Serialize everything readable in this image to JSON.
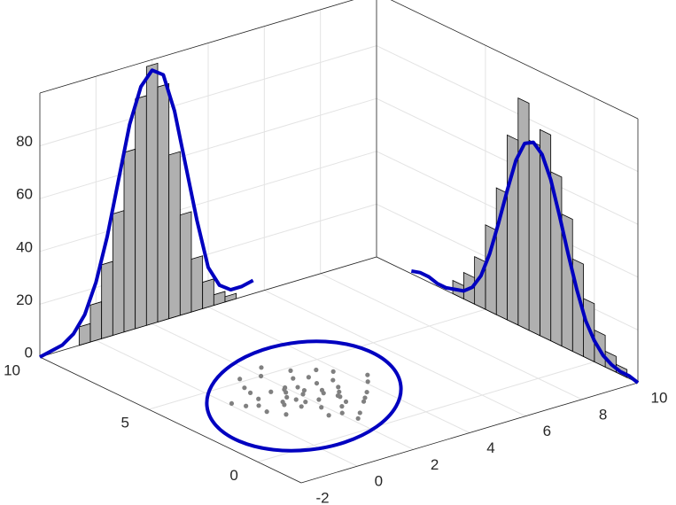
{
  "chart_data": {
    "type": "scatter3d",
    "xlim": [
      -2,
      10
    ],
    "ylim": [
      -2,
      10
    ],
    "zlim": [
      0,
      100
    ],
    "xticks": [
      -2,
      0,
      2,
      4,
      6,
      8,
      10
    ],
    "yticks": [
      0,
      5,
      10
    ],
    "zticks": [
      0,
      20,
      40,
      60,
      80
    ],
    "grid": true,
    "scatter": {
      "color": "#808080",
      "x": [
        2.1,
        1.5,
        2.8,
        0.9,
        3.2,
        2.4,
        1.8,
        2.6,
        1.2,
        3.6,
        2.0,
        0.5,
        2.9,
        1.7,
        3.0,
        2.3,
        1.1,
        2.7,
        1.9,
        3.4,
        0.8,
        2.2,
        1.6,
        2.5,
        4.1,
        1.4,
        3.1,
        2.0,
        0.3,
        2.6,
        1.9,
        3.8,
        1.3,
        2.4,
        2.8,
        1.0,
        2.1,
        3.3,
        1.7,
        2.9,
        4.4,
        0.6,
        2.3,
        1.5,
        3.5,
        2.2,
        1.8,
        2.7,
        0.1,
        3.0
      ],
      "y": [
        3.2,
        3.9,
        2.5,
        3.7,
        3.0,
        1.8,
        2.7,
        4.3,
        2.9,
        2.2,
        5.0,
        2.8,
        3.6,
        1.5,
        4.1,
        3.4,
        4.6,
        2.0,
        3.8,
        3.5,
        2.3,
        2.6,
        3.3,
        1.1,
        2.8,
        5.2,
        1.7,
        3.9,
        3.5,
        2.9,
        2.1,
        4.0,
        3.1,
        5.5,
        2.4,
        4.2,
        1.4,
        1.9,
        3.0,
        4.8,
        3.2,
        3.3,
        3.7,
        2.5,
        4.4,
        0.8,
        3.6,
        3.1,
        3.9,
        2.7
      ]
    },
    "x_histogram": {
      "color": "#b0b0b0",
      "bins": [
        -0.6,
        -0.2,
        0.2,
        0.6,
        1.0,
        1.4,
        1.8,
        2.2,
        2.6,
        3.0,
        3.4,
        3.8,
        4.2,
        4.6,
        5.0
      ],
      "counts": [
        7,
        14,
        28,
        46,
        68,
        87,
        98,
        89,
        62,
        38,
        20,
        10,
        4,
        2
      ]
    },
    "y_histogram": {
      "color": "#b0b0b0",
      "bins": [
        -1.5,
        -1.0,
        -0.5,
        0,
        0.5,
        1.0,
        1.5,
        2.0,
        2.5,
        3.0,
        3.5,
        4.0,
        4.5,
        5.0,
        5.5,
        6.0,
        6.5
      ],
      "counts": [
        3,
        6,
        12,
        22,
        35,
        50,
        64,
        78,
        72,
        86,
        70,
        48,
        32,
        18,
        10,
        5
      ]
    },
    "x_fit": {
      "color": "#0000c0",
      "x": [
        -2,
        -1.6,
        -1.2,
        -0.8,
        -0.4,
        0,
        0.4,
        0.8,
        1.2,
        1.6,
        2.0,
        2.4,
        2.8,
        3.2,
        3.6,
        4.0,
        4.4,
        4.8,
        5.2,
        5.6
      ],
      "values": [
        0,
        1,
        2,
        5,
        11,
        22,
        38,
        58,
        78,
        91,
        96,
        93,
        78,
        56,
        34,
        15,
        7,
        4,
        4,
        5
      ]
    },
    "y_fit": {
      "color": "#0000c0",
      "x": [
        -2,
        -1.6,
        -1.2,
        -0.8,
        -0.4,
        0,
        0.4,
        0.8,
        1.2,
        1.6,
        2.0,
        2.4,
        2.8,
        3.2,
        3.6,
        4.0,
        4.4,
        4.8,
        5.2,
        5.6,
        6.0,
        6.4,
        6.8,
        7.2,
        7.6,
        8.0,
        8.4
      ],
      "values": [
        0,
        1,
        1,
        2,
        4,
        8,
        14,
        24,
        36,
        49,
        61,
        69,
        72,
        70,
        62,
        49,
        35,
        22,
        12,
        6,
        3,
        2,
        1,
        1,
        2,
        2,
        1
      ]
    }
  }
}
